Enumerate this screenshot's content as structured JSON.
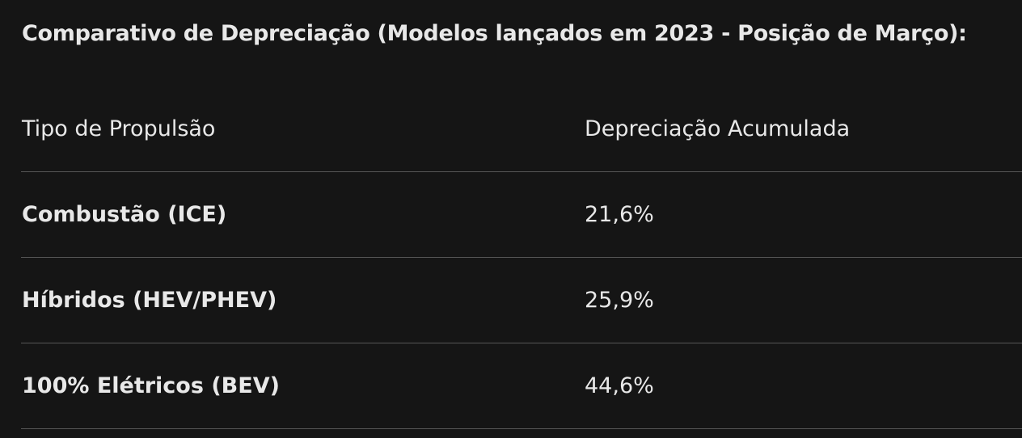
{
  "header": {
    "title": "Comparativo de Depreciação (Modelos lançados em 2023 - Posição de Março):"
  },
  "table": {
    "columns": [
      "Tipo de Propulsão",
      "Depreciação Acumulada"
    ],
    "rows": [
      [
        "Combustão (ICE)",
        "21,6%"
      ],
      [
        "Híbridos (HEV/PHEV)",
        "25,9%"
      ],
      [
        "100% Elétricos (BEV)",
        "44,6%"
      ]
    ]
  }
}
